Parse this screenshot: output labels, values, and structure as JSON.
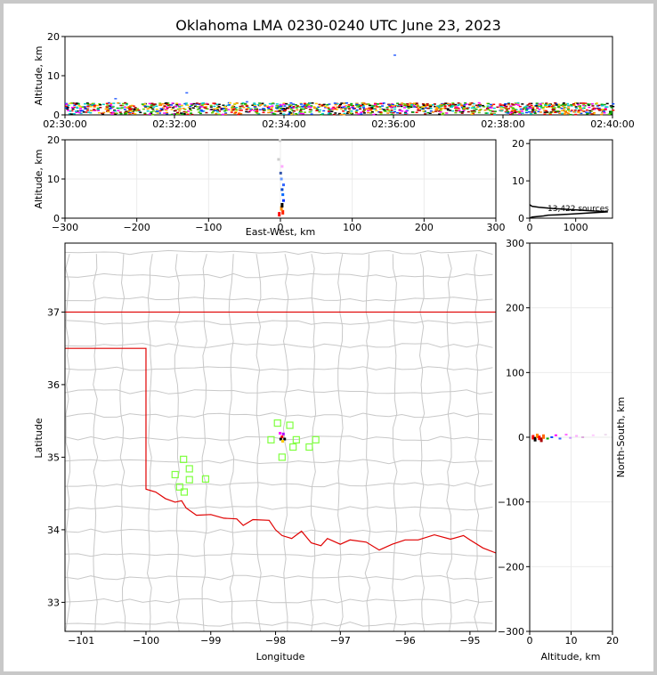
{
  "chart_data": {
    "type": "scatter",
    "title": "Oklahoma LMA 0230-0240 UTC June 23, 2023",
    "colors": {
      "state_border": "#e00000",
      "county": "#c8c8c8",
      "station": "#7fff3f",
      "grid": "#ebebeb"
    },
    "time_height": {
      "ylabel": "Altitude, km",
      "ylim": [
        0,
        20
      ],
      "yticks": [
        0,
        10,
        20
      ],
      "xticks": [
        "02:30:00",
        "02:32:00",
        "02:34:00",
        "02:36:00",
        "02:38:00",
        "02:40:00"
      ],
      "band_altitude_km": [
        0,
        3
      ],
      "isolated_sources": [
        {
          "minute": 0.9,
          "alt": 4.3
        },
        {
          "minute": 2.2,
          "alt": 5.8
        },
        {
          "minute": 6.0,
          "alt": 15.4
        },
        {
          "minute": 3.3,
          "alt": 3.5
        }
      ]
    },
    "ew_height": {
      "ylabel": "Altitude, km",
      "xlabel": "East-West, km",
      "xlim": [
        -300,
        300
      ],
      "ylim": [
        0,
        20
      ],
      "xticks": [
        -300,
        -200,
        -100,
        0,
        100,
        200,
        300
      ],
      "yticks": [
        0,
        10,
        20
      ],
      "column": [
        {
          "x": -1,
          "alt": 1,
          "color": "#ff0000"
        },
        {
          "x": 4,
          "alt": 1.5,
          "color": "#ff2200"
        },
        {
          "x": 2,
          "alt": 2.5,
          "color": "#ff8800"
        },
        {
          "x": 3,
          "alt": 3.3,
          "color": "#000000"
        },
        {
          "x": 5,
          "alt": 4.5,
          "color": "#0033ff"
        },
        {
          "x": 4,
          "alt": 6,
          "color": "#0066ff"
        },
        {
          "x": 3,
          "alt": 7.3,
          "color": "#0044cc"
        },
        {
          "x": 5,
          "alt": 8.5,
          "color": "#3366ff"
        },
        {
          "x": 2,
          "alt": 10,
          "color": "#6699ff"
        },
        {
          "x": 1,
          "alt": 11.5,
          "color": "#3355aa"
        },
        {
          "x": 3,
          "alt": 13.2,
          "color": "#ffaaff"
        },
        {
          "x": -2,
          "alt": 15,
          "color": "#cccccc"
        },
        {
          "x": 0,
          "alt": 19.8,
          "color": "#cccccc"
        }
      ]
    },
    "histogram": {
      "xlim": [
        0,
        1800
      ],
      "ylim": [
        0,
        21
      ],
      "xticks": [
        0,
        1000
      ],
      "yticks": [
        0,
        10,
        20
      ],
      "annotation": "13,422 sources",
      "profile": [
        {
          "count": 0,
          "alt": 3.6
        },
        {
          "count": 50,
          "alt": 3.2
        },
        {
          "count": 200,
          "alt": 2.9
        },
        {
          "count": 500,
          "alt": 2.6
        },
        {
          "count": 900,
          "alt": 2.3
        },
        {
          "count": 1300,
          "alt": 2.0
        },
        {
          "count": 1700,
          "alt": 1.7
        },
        {
          "count": 1300,
          "alt": 1.4
        },
        {
          "count": 900,
          "alt": 1.1
        },
        {
          "count": 600,
          "alt": 0.9
        },
        {
          "count": 400,
          "alt": 0.8
        },
        {
          "count": 300,
          "alt": 0.6
        },
        {
          "count": 50,
          "alt": 0.3
        },
        {
          "count": 0,
          "alt": 0
        }
      ]
    },
    "map": {
      "xlabel": "Longitude",
      "ylabel": "Latitude",
      "xlim": [
        -101.25,
        -94.6
      ],
      "ylim": [
        32.6,
        37.95
      ],
      "xticks": [
        -101,
        -100,
        -99,
        -98,
        -97,
        -96,
        -95
      ],
      "yticks": [
        33,
        34,
        35,
        36,
        37
      ],
      "stations": [
        {
          "lon": -97.97,
          "lat": 35.47
        },
        {
          "lon": -97.78,
          "lat": 35.44
        },
        {
          "lon": -98.07,
          "lat": 35.24
        },
        {
          "lon": -97.68,
          "lat": 35.24
        },
        {
          "lon": -97.38,
          "lat": 35.24
        },
        {
          "lon": -97.73,
          "lat": 35.14
        },
        {
          "lon": -97.48,
          "lat": 35.14
        },
        {
          "lon": -97.9,
          "lat": 35.0
        },
        {
          "lon": -99.42,
          "lat": 34.97
        },
        {
          "lon": -99.33,
          "lat": 34.84
        },
        {
          "lon": -99.55,
          "lat": 34.76
        },
        {
          "lon": -99.08,
          "lat": 34.7
        },
        {
          "lon": -99.33,
          "lat": 34.69
        },
        {
          "lon": -99.48,
          "lat": 34.59
        },
        {
          "lon": -99.41,
          "lat": 34.52
        }
      ],
      "lightning": [
        {
          "lon": -97.93,
          "lat": 35.33,
          "color": "#ff00ff"
        },
        {
          "lon": -97.88,
          "lat": 35.32,
          "color": "#aa00ff"
        },
        {
          "lon": -97.9,
          "lat": 35.28,
          "color": "#ff0000"
        },
        {
          "lon": -97.86,
          "lat": 35.25,
          "color": "#000000"
        },
        {
          "lon": -97.92,
          "lat": 35.25,
          "color": "#000000"
        },
        {
          "lon": -97.89,
          "lat": 35.22,
          "color": "#ffcc00"
        }
      ]
    },
    "ns_height": {
      "ylabel": "North-South, km",
      "xlabel": "Altitude, km",
      "xlim": [
        0,
        20
      ],
      "ylim": [
        -300,
        300
      ],
      "xticks": [
        0,
        10,
        20
      ],
      "yticks": [
        300,
        200,
        100,
        0,
        -100,
        -200,
        -300
      ],
      "sources": [
        {
          "alt": 0.5,
          "ns": 0,
          "color": "#ff0000"
        },
        {
          "alt": 1.0,
          "ns": -3,
          "color": "#000000"
        },
        {
          "alt": 1.5,
          "ns": 2,
          "color": "#ff8800"
        },
        {
          "alt": 2.0,
          "ns": -1,
          "color": "#ff0000"
        },
        {
          "alt": 2.5,
          "ns": -4,
          "color": "#aa0000"
        },
        {
          "alt": 3.0,
          "ns": 1,
          "color": "#ff6600"
        },
        {
          "alt": 4.0,
          "ns": -2,
          "color": "#00aa00"
        },
        {
          "alt": 5.0,
          "ns": 0,
          "color": "#0044ff"
        },
        {
          "alt": 6.0,
          "ns": 3,
          "color": "#ff00ff"
        },
        {
          "alt": 7.0,
          "ns": -2,
          "color": "#3366ff"
        },
        {
          "alt": 8.5,
          "ns": 4,
          "color": "#ff66ff"
        },
        {
          "alt": 9.5,
          "ns": -1,
          "color": "#cc99ff"
        },
        {
          "alt": 11.0,
          "ns": 2,
          "color": "#ffaaff"
        },
        {
          "alt": 12.5,
          "ns": 0,
          "color": "#ddaadd"
        },
        {
          "alt": 15.0,
          "ns": 3,
          "color": "#ffccff"
        },
        {
          "alt": 18.0,
          "ns": 4,
          "color": "#eeddee"
        }
      ]
    }
  }
}
